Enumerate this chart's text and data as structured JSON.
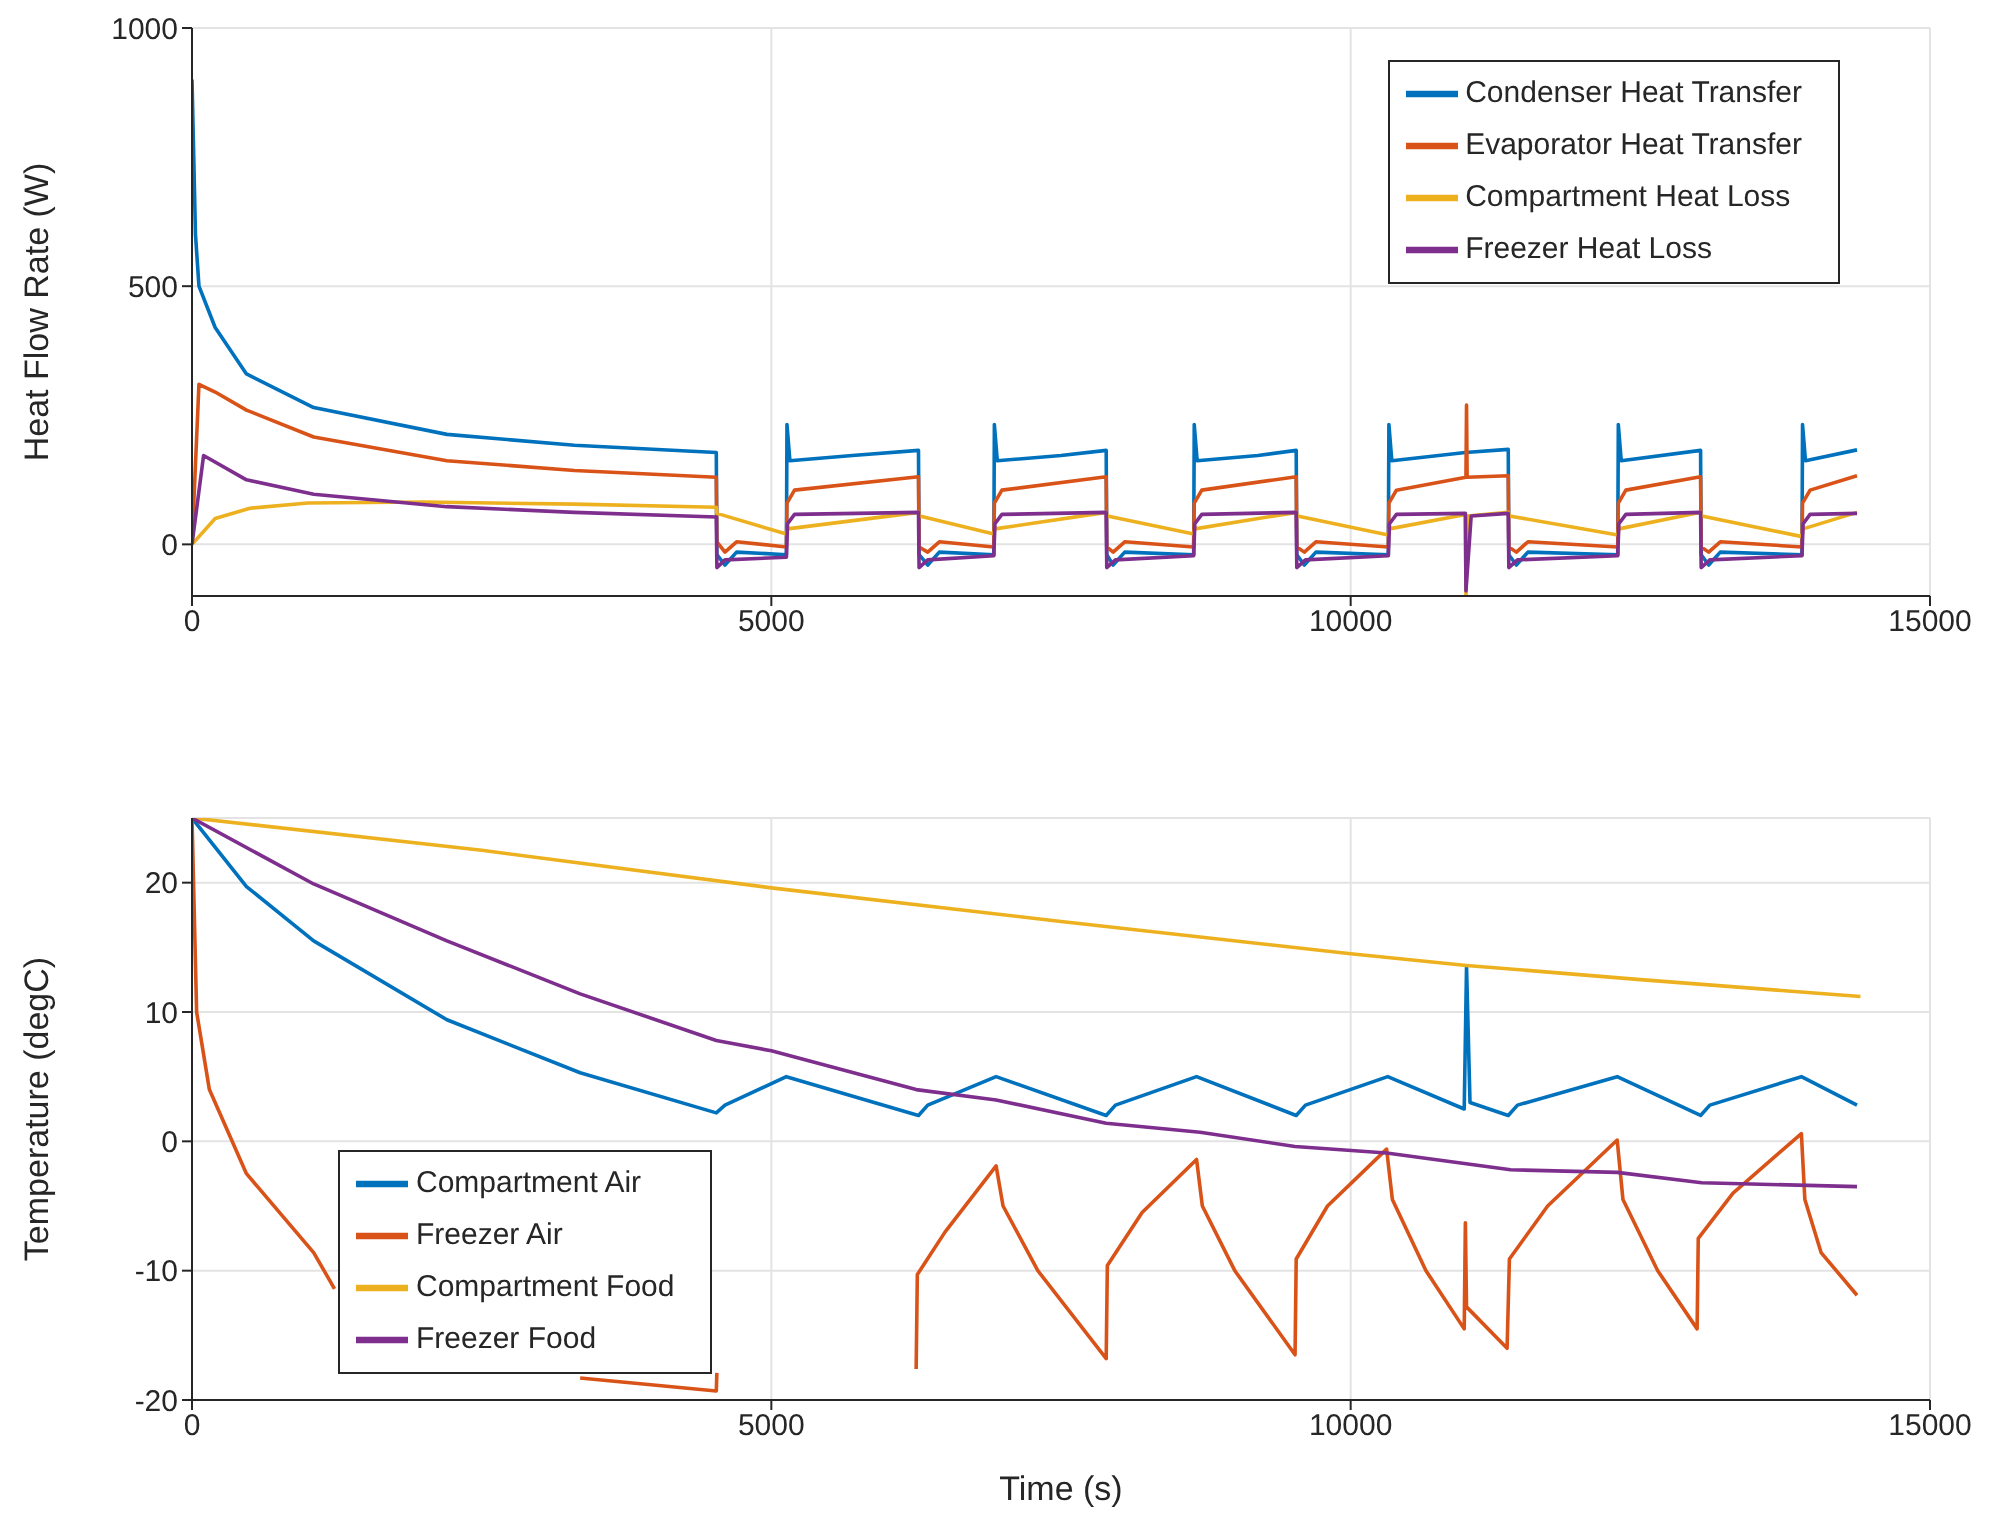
{
  "chart_data": [
    {
      "type": "line",
      "ylabel": "Heat Flow Rate (W)",
      "xlim": [
        0,
        15000
      ],
      "xticks": [
        0,
        5000,
        10000,
        15000
      ],
      "ylim": [
        -100,
        1000
      ],
      "yticks": [
        0,
        500,
        1000
      ],
      "grid": true,
      "legend": "top right",
      "series": [
        {
          "name": "Condenser Heat Transfer",
          "color": "#0072bd",
          "x": [
            0,
            30,
            60,
            200,
            470,
            1050,
            2200,
            3300,
            4525,
            4530,
            4600,
            4700,
            5130,
            5135,
            5160,
            5700,
            6270,
            6275,
            6350,
            6450,
            6920,
            6925,
            6950,
            7500,
            7890,
            7895,
            7950,
            8050,
            8645,
            8650,
            8675,
            9200,
            9530,
            9535,
            9600,
            9700,
            10325,
            10330,
            10355,
            10990,
            11360,
            11365,
            11430,
            11530,
            12305,
            12310,
            12335,
            13020,
            13025,
            13090,
            13190,
            13895,
            13900,
            13925,
            14370
          ],
          "values": [
            900,
            600,
            500,
            420,
            330,
            265,
            213,
            192,
            178,
            -20,
            -40,
            -15,
            -20,
            232,
            162,
            172,
            182,
            -20,
            -40,
            -15,
            -20,
            232,
            162,
            172,
            182,
            -20,
            -40,
            -15,
            -20,
            232,
            162,
            172,
            182,
            -20,
            -40,
            -15,
            -20,
            232,
            162,
            178,
            184,
            -20,
            -40,
            -15,
            -20,
            232,
            162,
            182,
            -20,
            -40,
            -15,
            -20,
            232,
            162,
            183
          ]
        },
        {
          "name": "Evaporator Heat Transfer",
          "color": "#d95319",
          "x": [
            0,
            60,
            200,
            470,
            1050,
            2200,
            3300,
            4525,
            4530,
            4600,
            4700,
            5130,
            5135,
            5200,
            6270,
            6275,
            6350,
            6450,
            6920,
            6925,
            6990,
            7890,
            7895,
            7950,
            8050,
            8645,
            8650,
            8715,
            9530,
            9535,
            9600,
            9700,
            10325,
            10330,
            10395,
            10995,
            11000,
            11005,
            11360,
            11365,
            11430,
            11530,
            12305,
            12310,
            12375,
            13020,
            13025,
            13090,
            13190,
            13895,
            13900,
            13965,
            14370
          ],
          "values": [
            0,
            310,
            295,
            260,
            208,
            162,
            143,
            130,
            5,
            -15,
            5,
            -5,
            80,
            105,
            131,
            -5,
            -15,
            5,
            -5,
            80,
            105,
            131,
            -5,
            -15,
            5,
            -5,
            80,
            105,
            131,
            -5,
            -15,
            5,
            -5,
            80,
            105,
            130,
            270,
            130,
            133,
            -5,
            -15,
            5,
            -5,
            80,
            105,
            131,
            -5,
            -15,
            5,
            -5,
            80,
            105,
            133
          ]
        },
        {
          "name": "Compartment Heat Loss",
          "color": "#edb120",
          "x": [
            0,
            200,
            500,
            1000,
            2000,
            3300,
            4525,
            4530,
            5130,
            5140,
            6270,
            6280,
            6920,
            6930,
            7890,
            7900,
            8645,
            8655,
            9530,
            9540,
            10325,
            10335,
            10990,
            10995,
            11010,
            11360,
            11370,
            12305,
            12315,
            13020,
            13030,
            13895,
            13905,
            14370
          ],
          "values": [
            0,
            50,
            70,
            80,
            82,
            78,
            72,
            60,
            20,
            30,
            62,
            55,
            20,
            30,
            62,
            55,
            20,
            30,
            62,
            55,
            18,
            30,
            58,
            -100,
            55,
            62,
            55,
            18,
            30,
            62,
            55,
            15,
            30,
            62
          ]
        },
        {
          "name": "Freezer Heat Loss",
          "color": "#7e2f8e",
          "x": [
            0,
            100,
            470,
            1050,
            2200,
            3300,
            4525,
            4530,
            4600,
            5130,
            5140,
            5200,
            6270,
            6275,
            6350,
            6920,
            6930,
            6990,
            7890,
            7895,
            7970,
            8645,
            8655,
            8715,
            9530,
            9535,
            9610,
            10325,
            10335,
            10395,
            10990,
            10995,
            11020,
            11040,
            11360,
            11365,
            11440,
            12305,
            12315,
            12375,
            13020,
            13025,
            13100,
            13895,
            13905,
            13965,
            14370
          ],
          "values": [
            0,
            172,
            125,
            97,
            73,
            62,
            53,
            -45,
            -30,
            -25,
            40,
            58,
            62,
            -45,
            -30,
            -22,
            40,
            58,
            62,
            -45,
            -30,
            -22,
            40,
            58,
            62,
            -45,
            -30,
            -22,
            40,
            58,
            60,
            -90,
            -10,
            55,
            60,
            -45,
            -30,
            -22,
            40,
            58,
            62,
            -45,
            -30,
            -22,
            40,
            58,
            60
          ]
        }
      ]
    },
    {
      "type": "line",
      "xlabel": "Time (s)",
      "ylabel": "Temperature (degC)",
      "xlim": [
        0,
        15000
      ],
      "xticks": [
        0,
        5000,
        10000,
        15000
      ],
      "ylim": [
        -20,
        25
      ],
      "yticks": [
        -20,
        -10,
        0,
        10,
        20
      ],
      "grid": true,
      "legend": "bottom left",
      "series": [
        {
          "name": "Compartment Air",
          "color": "#0072bd",
          "x": [
            0,
            470,
            1050,
            2200,
            3350,
            4525,
            4600,
            5130,
            6270,
            6350,
            6940,
            7890,
            7970,
            8670,
            9530,
            9610,
            10320,
            10980,
            11000,
            11030,
            11360,
            11440,
            12300,
            13020,
            13100,
            13890,
            14370
          ],
          "values": [
            25,
            19.7,
            15.5,
            9.4,
            5.3,
            2.2,
            2.8,
            5,
            2,
            2.8,
            5,
            2,
            2.8,
            5,
            2,
            2.8,
            5,
            2.5,
            13.5,
            3,
            2,
            2.8,
            5,
            2,
            2.8,
            5,
            2.8
          ]
        },
        {
          "name": "Freezer Air",
          "color": "#d95319",
          "x": [
            0,
            40,
            150,
            470,
            1050,
            1230,
            2000,
            3350,
            4525,
            4530,
            5000,
            6250,
            6260,
            6500,
            6940,
            7000,
            7300,
            7890,
            7900,
            8200,
            8670,
            8720,
            9000,
            9520,
            9530,
            9800,
            10310,
            10360,
            10650,
            10980,
            10990,
            11000,
            11350,
            11370,
            11700,
            12300,
            12350,
            12650,
            12990,
            13000,
            13300,
            13890,
            13920,
            14060,
            14370
          ],
          "values": [
            25,
            10,
            4,
            -2.5,
            -8.6,
            -11.4,
            null,
            -18.3,
            -19.3,
            -17.9,
            null,
            -17.6,
            -10.3,
            -7,
            -1.9,
            -5,
            -10,
            -16.8,
            -9.6,
            -5.5,
            -1.4,
            -5,
            -10,
            -16.5,
            -9.1,
            -5,
            -0.6,
            -4.5,
            -10,
            -14.5,
            -6.3,
            -12.8,
            -16,
            -9.1,
            -5,
            0.1,
            -4.5,
            -10,
            -14.5,
            -7.5,
            -4,
            0.6,
            -4.5,
            -8.6,
            -11.9
          ]
        },
        {
          "name": "Compartment Food",
          "color": "#edb120",
          "x": [
            0,
            2500,
            5000,
            7500,
            10000,
            11000,
            12500,
            14400
          ],
          "values": [
            25,
            22.5,
            19.6,
            17,
            14.5,
            13.6,
            12.5,
            11.2
          ]
        },
        {
          "name": "Freezer Food",
          "color": "#7e2f8e",
          "x": [
            0,
            1050,
            2200,
            3350,
            4525,
            5000,
            6250,
            6940,
            7890,
            8700,
            9520,
            10310,
            11380,
            12300,
            13030,
            14370
          ],
          "values": [
            25,
            19.9,
            15.5,
            11.4,
            7.8,
            7,
            4,
            3.2,
            1.4,
            0.7,
            -0.4,
            -0.9,
            -2.2,
            -2.4,
            -3.2,
            -3.5
          ]
        }
      ]
    }
  ]
}
